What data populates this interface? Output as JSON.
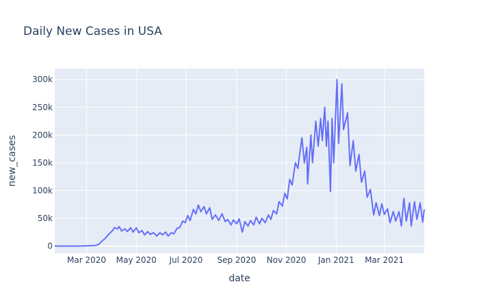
{
  "chart_data": {
    "type": "line",
    "title": "Daily New Cases in USA",
    "xlabel": "date",
    "ylabel": "new_cases",
    "xlim": [
      "2020-01-22",
      "2021-04-19"
    ],
    "ylim": [
      -13000,
      320000
    ],
    "x_ticks": [
      {
        "date": "2020-03-01",
        "label": "Mar 2020"
      },
      {
        "date": "2020-05-01",
        "label": "May 2020"
      },
      {
        "date": "2020-07-01",
        "label": "Jul 2020"
      },
      {
        "date": "2020-09-01",
        "label": "Sep 2020"
      },
      {
        "date": "2020-11-01",
        "label": "Nov 2020"
      },
      {
        "date": "2021-01-01",
        "label": "Jan 2021"
      },
      {
        "date": "2021-03-01",
        "label": "Mar 2021"
      }
    ],
    "y_ticks": [
      {
        "value": 0,
        "label": "0"
      },
      {
        "value": 50000,
        "label": "50k"
      },
      {
        "value": 100000,
        "label": "100k"
      },
      {
        "value": 150000,
        "label": "150k"
      },
      {
        "value": 200000,
        "label": "200k"
      },
      {
        "value": 250000,
        "label": "250k"
      },
      {
        "value": 300000,
        "label": "300k"
      }
    ],
    "grid": true,
    "colors": {
      "line": "#636efa",
      "plot_bg": "#e5ecf6",
      "grid": "#ffffff",
      "text": "#2a3f5f"
    },
    "series": [
      {
        "points": [
          [
            "2020-01-22",
            0
          ],
          [
            "2020-02-05",
            0
          ],
          [
            "2020-02-20",
            0
          ],
          [
            "2020-03-05",
            500
          ],
          [
            "2020-03-12",
            1000
          ],
          [
            "2020-03-16",
            3000
          ],
          [
            "2020-03-20",
            9000
          ],
          [
            "2020-03-24",
            14000
          ],
          [
            "2020-03-28",
            21000
          ],
          [
            "2020-04-02",
            28000
          ],
          [
            "2020-04-04",
            33000
          ],
          [
            "2020-04-08",
            31000
          ],
          [
            "2020-04-10",
            35000
          ],
          [
            "2020-04-13",
            27000
          ],
          [
            "2020-04-17",
            31000
          ],
          [
            "2020-04-20",
            26000
          ],
          [
            "2020-04-24",
            33000
          ],
          [
            "2020-04-27",
            25000
          ],
          [
            "2020-05-01",
            33000
          ],
          [
            "2020-05-04",
            24000
          ],
          [
            "2020-05-08",
            28000
          ],
          [
            "2020-05-11",
            20000
          ],
          [
            "2020-05-15",
            26000
          ],
          [
            "2020-05-18",
            21000
          ],
          [
            "2020-05-22",
            24000
          ],
          [
            "2020-05-26",
            18000
          ],
          [
            "2020-05-30",
            24000
          ],
          [
            "2020-06-02",
            20000
          ],
          [
            "2020-06-06",
            25000
          ],
          [
            "2020-06-09",
            18000
          ],
          [
            "2020-06-13",
            24000
          ],
          [
            "2020-06-16",
            22000
          ],
          [
            "2020-06-20",
            32000
          ],
          [
            "2020-06-23",
            33000
          ],
          [
            "2020-06-27",
            45000
          ],
          [
            "2020-06-30",
            42000
          ],
          [
            "2020-07-03",
            55000
          ],
          [
            "2020-07-06",
            46000
          ],
          [
            "2020-07-10",
            66000
          ],
          [
            "2020-07-13",
            58000
          ],
          [
            "2020-07-16",
            74000
          ],
          [
            "2020-07-19",
            62000
          ],
          [
            "2020-07-23",
            71000
          ],
          [
            "2020-07-26",
            58000
          ],
          [
            "2020-07-30",
            69000
          ],
          [
            "2020-08-02",
            48000
          ],
          [
            "2020-08-06",
            56000
          ],
          [
            "2020-08-10",
            46000
          ],
          [
            "2020-08-14",
            58000
          ],
          [
            "2020-08-18",
            44000
          ],
          [
            "2020-08-21",
            48000
          ],
          [
            "2020-08-25",
            38000
          ],
          [
            "2020-08-28",
            47000
          ],
          [
            "2020-09-01",
            40000
          ],
          [
            "2020-09-04",
            49000
          ],
          [
            "2020-09-08",
            25000
          ],
          [
            "2020-09-11",
            44000
          ],
          [
            "2020-09-15",
            36000
          ],
          [
            "2020-09-18",
            46000
          ],
          [
            "2020-09-22",
            38000
          ],
          [
            "2020-09-25",
            52000
          ],
          [
            "2020-09-29",
            40000
          ],
          [
            "2020-10-02",
            50000
          ],
          [
            "2020-10-06",
            42000
          ],
          [
            "2020-10-10",
            56000
          ],
          [
            "2020-10-13",
            48000
          ],
          [
            "2020-10-16",
            64000
          ],
          [
            "2020-10-20",
            58000
          ],
          [
            "2020-10-23",
            80000
          ],
          [
            "2020-10-27",
            72000
          ],
          [
            "2020-10-30",
            95000
          ],
          [
            "2020-11-02",
            85000
          ],
          [
            "2020-11-05",
            120000
          ],
          [
            "2020-11-08",
            110000
          ],
          [
            "2020-11-12",
            150000
          ],
          [
            "2020-11-15",
            140000
          ],
          [
            "2020-11-20",
            195000
          ],
          [
            "2020-11-23",
            150000
          ],
          [
            "2020-11-26",
            178000
          ],
          [
            "2020-11-27",
            112000
          ],
          [
            "2020-12-01",
            200000
          ],
          [
            "2020-12-03",
            150000
          ],
          [
            "2020-12-07",
            225000
          ],
          [
            "2020-12-10",
            180000
          ],
          [
            "2020-12-13",
            230000
          ],
          [
            "2020-12-15",
            190000
          ],
          [
            "2020-12-18",
            250000
          ],
          [
            "2020-12-20",
            180000
          ],
          [
            "2020-12-22",
            225000
          ],
          [
            "2020-12-25",
            98000
          ],
          [
            "2020-12-27",
            230000
          ],
          [
            "2020-12-29",
            150000
          ],
          [
            "2021-01-02",
            300000
          ],
          [
            "2021-01-04",
            185000
          ],
          [
            "2021-01-08",
            292000
          ],
          [
            "2021-01-10",
            210000
          ],
          [
            "2021-01-15",
            240000
          ],
          [
            "2021-01-18",
            145000
          ],
          [
            "2021-01-22",
            190000
          ],
          [
            "2021-01-25",
            135000
          ],
          [
            "2021-01-29",
            165000
          ],
          [
            "2021-02-01",
            115000
          ],
          [
            "2021-02-05",
            135000
          ],
          [
            "2021-02-08",
            88000
          ],
          [
            "2021-02-12",
            102000
          ],
          [
            "2021-02-16",
            56000
          ],
          [
            "2021-02-19",
            78000
          ],
          [
            "2021-02-23",
            55000
          ],
          [
            "2021-02-26",
            76000
          ],
          [
            "2021-03-01",
            57000
          ],
          [
            "2021-03-05",
            67000
          ],
          [
            "2021-03-08",
            42000
          ],
          [
            "2021-03-12",
            62000
          ],
          [
            "2021-03-15",
            45000
          ],
          [
            "2021-03-19",
            62000
          ],
          [
            "2021-03-22",
            36000
          ],
          [
            "2021-03-25",
            86000
          ],
          [
            "2021-03-28",
            45000
          ],
          [
            "2021-04-01",
            78000
          ],
          [
            "2021-04-03",
            36000
          ],
          [
            "2021-04-07",
            80000
          ],
          [
            "2021-04-10",
            48000
          ],
          [
            "2021-04-14",
            78000
          ],
          [
            "2021-04-17",
            43000
          ],
          [
            "2021-04-19",
            66000
          ]
        ]
      }
    ]
  }
}
